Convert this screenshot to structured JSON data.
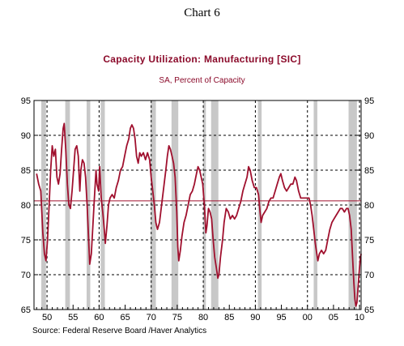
{
  "chart_number": "Chart 6",
  "source_note": "Source:  Federal Reserve Board /Haver Analytics",
  "chart_data": {
    "type": "line",
    "title": "Capacity Utilization: Manufacturing [SIC]",
    "subtitle": "SA, Percent of Capacity",
    "x_range": [
      1947.5,
      2010.3
    ],
    "ylim": [
      65,
      95
    ],
    "y_ticks": [
      65,
      70,
      75,
      80,
      85,
      90,
      95
    ],
    "x_tick_labels": [
      {
        "year": 1950,
        "label": "50"
      },
      {
        "year": 1955,
        "label": "55"
      },
      {
        "year": 1960,
        "label": "60"
      },
      {
        "year": 1965,
        "label": "65"
      },
      {
        "year": 1970,
        "label": "70"
      },
      {
        "year": 1975,
        "label": "75"
      },
      {
        "year": 1980,
        "label": "80"
      },
      {
        "year": 1985,
        "label": "85"
      },
      {
        "year": 1990,
        "label": "90"
      },
      {
        "year": 1995,
        "label": "95"
      },
      {
        "year": 2000,
        "label": "00"
      },
      {
        "year": 2005,
        "label": "05"
      },
      {
        "year": 2010,
        "label": "10"
      }
    ],
    "vertical_dashed_gridlines_at": [
      1950,
      1960,
      1970,
      1980,
      1990,
      2000,
      2010
    ],
    "horizontal_dashed_gridlines": true,
    "reference_line": 80.6,
    "recession_bands": [
      [
        1948.9,
        1949.8
      ],
      [
        1953.5,
        1954.4
      ],
      [
        1957.6,
        1958.3
      ],
      [
        1960.3,
        1961.1
      ],
      [
        1969.9,
        1970.9
      ],
      [
        1973.9,
        1975.2
      ],
      [
        1980.0,
        1980.5
      ],
      [
        1981.5,
        1982.9
      ],
      [
        1990.5,
        1991.2
      ],
      [
        2001.2,
        2001.9
      ],
      [
        2007.9,
        2009.5
      ]
    ],
    "series": [
      {
        "color": "#a0102e",
        "points": [
          [
            1948.0,
            84.5
          ],
          [
            1948.4,
            83.0
          ],
          [
            1948.8,
            82.0
          ],
          [
            1949.2,
            76.0
          ],
          [
            1949.5,
            73.0
          ],
          [
            1949.8,
            72.0
          ],
          [
            1950.1,
            75.0
          ],
          [
            1950.4,
            80.0
          ],
          [
            1950.7,
            85.0
          ],
          [
            1951.0,
            88.5
          ],
          [
            1951.3,
            87.0
          ],
          [
            1951.6,
            88.0
          ],
          [
            1951.9,
            84.0
          ],
          [
            1952.2,
            83.0
          ],
          [
            1952.5,
            84.5
          ],
          [
            1952.8,
            88.0
          ],
          [
            1953.1,
            91.0
          ],
          [
            1953.3,
            91.7
          ],
          [
            1953.6,
            88.0
          ],
          [
            1953.9,
            83.0
          ],
          [
            1954.2,
            80.0
          ],
          [
            1954.5,
            79.5
          ],
          [
            1954.8,
            82.0
          ],
          [
            1955.1,
            85.0
          ],
          [
            1955.4,
            88.0
          ],
          [
            1955.7,
            88.5
          ],
          [
            1956.0,
            87.0
          ],
          [
            1956.3,
            82.0
          ],
          [
            1956.5,
            85.0
          ],
          [
            1956.8,
            86.5
          ],
          [
            1957.1,
            86.0
          ],
          [
            1957.4,
            84.0
          ],
          [
            1957.7,
            80.0
          ],
          [
            1958.0,
            75.0
          ],
          [
            1958.2,
            71.5
          ],
          [
            1958.5,
            73.0
          ],
          [
            1958.8,
            77.0
          ],
          [
            1959.1,
            81.0
          ],
          [
            1959.4,
            85.0
          ],
          [
            1959.6,
            83.0
          ],
          [
            1959.9,
            82.0
          ],
          [
            1960.1,
            85.5
          ],
          [
            1960.4,
            81.0
          ],
          [
            1960.7,
            79.0
          ],
          [
            1961.0,
            76.5
          ],
          [
            1961.2,
            74.5
          ],
          [
            1961.5,
            77.0
          ],
          [
            1961.8,
            80.0
          ],
          [
            1962.1,
            81.0
          ],
          [
            1962.5,
            81.5
          ],
          [
            1962.9,
            81.0
          ],
          [
            1963.3,
            82.5
          ],
          [
            1963.7,
            83.5
          ],
          [
            1964.1,
            85.0
          ],
          [
            1964.5,
            85.5
          ],
          [
            1964.9,
            87.0
          ],
          [
            1965.3,
            88.5
          ],
          [
            1965.7,
            89.5
          ],
          [
            1966.0,
            91.0
          ],
          [
            1966.3,
            91.5
          ],
          [
            1966.6,
            91.0
          ],
          [
            1966.9,
            89.5
          ],
          [
            1967.2,
            87.0
          ],
          [
            1967.5,
            86.0
          ],
          [
            1967.8,
            87.5
          ],
          [
            1968.1,
            87.0
          ],
          [
            1968.5,
            87.5
          ],
          [
            1968.9,
            86.5
          ],
          [
            1969.3,
            87.5
          ],
          [
            1969.7,
            86.5
          ],
          [
            1970.0,
            84.0
          ],
          [
            1970.3,
            82.0
          ],
          [
            1970.6,
            80.0
          ],
          [
            1970.9,
            77.5
          ],
          [
            1971.2,
            76.5
          ],
          [
            1971.6,
            77.5
          ],
          [
            1972.0,
            80.0
          ],
          [
            1972.4,
            82.5
          ],
          [
            1972.8,
            85.0
          ],
          [
            1973.1,
            87.0
          ],
          [
            1973.4,
            88.5
          ],
          [
            1973.7,
            88.0
          ],
          [
            1974.0,
            87.0
          ],
          [
            1974.3,
            86.0
          ],
          [
            1974.6,
            84.0
          ],
          [
            1974.9,
            79.0
          ],
          [
            1975.1,
            74.0
          ],
          [
            1975.3,
            72.0
          ],
          [
            1975.6,
            73.5
          ],
          [
            1975.9,
            75.5
          ],
          [
            1976.3,
            77.5
          ],
          [
            1976.7,
            78.5
          ],
          [
            1977.1,
            80.0
          ],
          [
            1977.5,
            81.5
          ],
          [
            1977.9,
            82.0
          ],
          [
            1978.3,
            83.0
          ],
          [
            1978.7,
            84.5
          ],
          [
            1979.0,
            85.5
          ],
          [
            1979.3,
            85.0
          ],
          [
            1979.6,
            84.0
          ],
          [
            1979.9,
            83.0
          ],
          [
            1980.2,
            80.0
          ],
          [
            1980.5,
            76.0
          ],
          [
            1980.7,
            77.0
          ],
          [
            1981.0,
            79.5
          ],
          [
            1981.3,
            79.0
          ],
          [
            1981.6,
            78.0
          ],
          [
            1981.9,
            75.0
          ],
          [
            1982.2,
            72.5
          ],
          [
            1982.5,
            71.0
          ],
          [
            1982.8,
            69.5
          ],
          [
            1983.0,
            70.0
          ],
          [
            1983.3,
            72.5
          ],
          [
            1983.7,
            75.0
          ],
          [
            1984.0,
            77.5
          ],
          [
            1984.4,
            79.5
          ],
          [
            1984.8,
            79.0
          ],
          [
            1985.2,
            78.0
          ],
          [
            1985.6,
            78.5
          ],
          [
            1986.0,
            78.0
          ],
          [
            1986.4,
            78.5
          ],
          [
            1986.8,
            79.5
          ],
          [
            1987.2,
            80.5
          ],
          [
            1987.6,
            82.0
          ],
          [
            1988.0,
            83.0
          ],
          [
            1988.4,
            84.0
          ],
          [
            1988.7,
            85.5
          ],
          [
            1989.0,
            85.0
          ],
          [
            1989.4,
            83.5
          ],
          [
            1989.8,
            82.5
          ],
          [
            1990.2,
            82.5
          ],
          [
            1990.6,
            81.5
          ],
          [
            1990.9,
            79.0
          ],
          [
            1991.1,
            77.5
          ],
          [
            1991.4,
            78.5
          ],
          [
            1991.8,
            79.0
          ],
          [
            1992.2,
            79.5
          ],
          [
            1992.6,
            80.5
          ],
          [
            1993.0,
            81.0
          ],
          [
            1993.4,
            81.0
          ],
          [
            1993.8,
            82.0
          ],
          [
            1994.2,
            83.0
          ],
          [
            1994.6,
            84.0
          ],
          [
            1994.9,
            84.5
          ],
          [
            1995.2,
            83.5
          ],
          [
            1995.6,
            82.5
          ],
          [
            1996.0,
            82.0
          ],
          [
            1996.4,
            82.5
          ],
          [
            1996.8,
            83.0
          ],
          [
            1997.2,
            83.0
          ],
          [
            1997.6,
            84.0
          ],
          [
            1997.9,
            83.5
          ],
          [
            1998.3,
            82.0
          ],
          [
            1998.7,
            81.0
          ],
          [
            1999.1,
            81.0
          ],
          [
            1999.5,
            81.0
          ],
          [
            1999.9,
            81.0
          ],
          [
            2000.3,
            81.0
          ],
          [
            2000.6,
            80.0
          ],
          [
            2000.9,
            78.5
          ],
          [
            2001.2,
            76.5
          ],
          [
            2001.5,
            74.5
          ],
          [
            2001.8,
            73.0
          ],
          [
            2002.0,
            72.0
          ],
          [
            2002.3,
            73.0
          ],
          [
            2002.7,
            73.5
          ],
          [
            2003.1,
            73.0
          ],
          [
            2003.5,
            73.5
          ],
          [
            2003.9,
            75.0
          ],
          [
            2004.3,
            76.5
          ],
          [
            2004.7,
            77.5
          ],
          [
            2005.1,
            78.0
          ],
          [
            2005.5,
            78.5
          ],
          [
            2005.9,
            79.0
          ],
          [
            2006.3,
            79.5
          ],
          [
            2006.7,
            79.5
          ],
          [
            2007.1,
            79.0
          ],
          [
            2007.5,
            79.5
          ],
          [
            2007.8,
            79.5
          ],
          [
            2008.1,
            78.5
          ],
          [
            2008.4,
            76.5
          ],
          [
            2008.7,
            72.0
          ],
          [
            2008.9,
            69.0
          ],
          [
            2009.1,
            66.5
          ],
          [
            2009.3,
            65.5
          ],
          [
            2009.5,
            66.0
          ],
          [
            2009.7,
            68.0
          ],
          [
            2009.9,
            70.0
          ],
          [
            2010.1,
            72.0
          ],
          [
            2010.3,
            73.0
          ]
        ]
      }
    ]
  }
}
